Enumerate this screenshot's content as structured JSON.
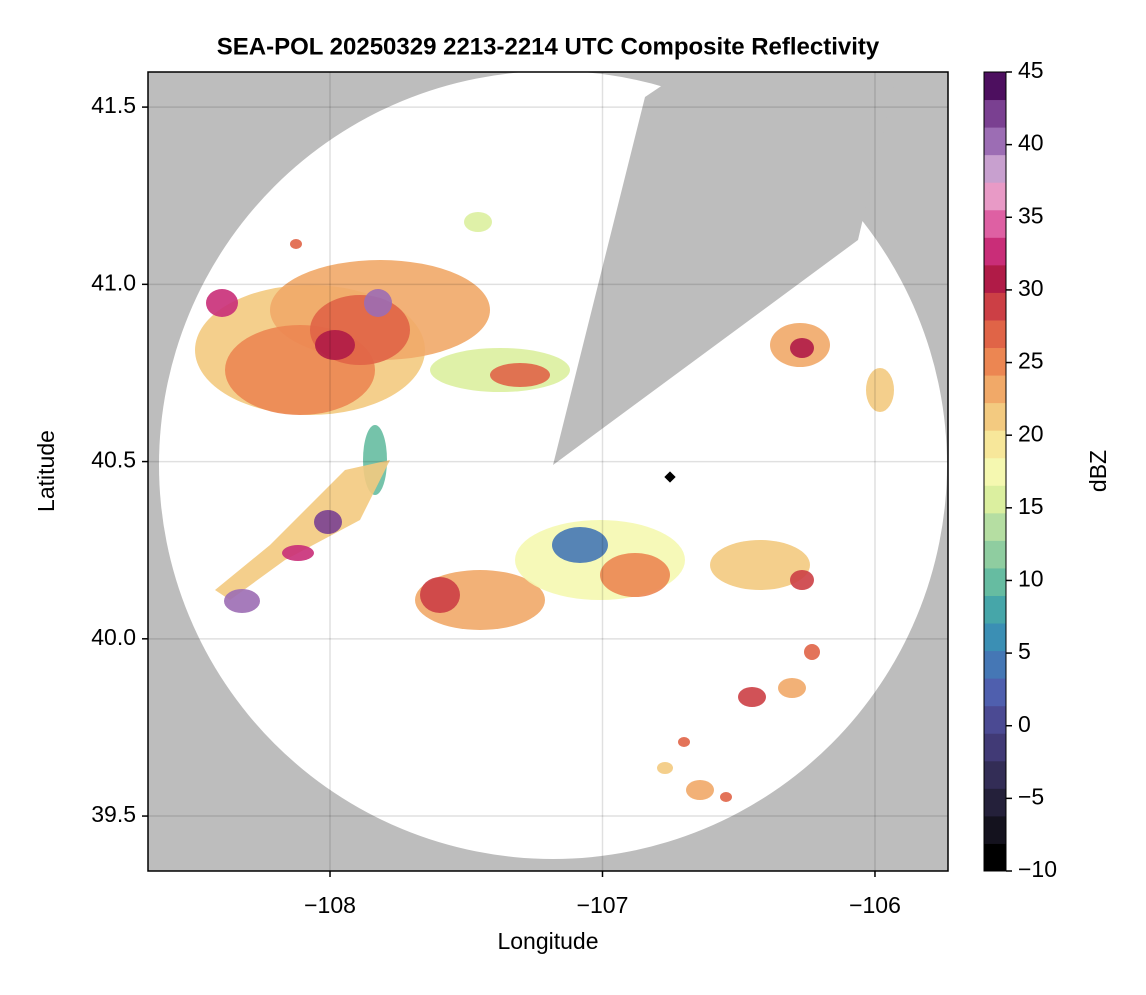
{
  "chart_data": {
    "type": "radar-map",
    "title": "SEA-POL 20250329 2213-2214 UTC Composite Reflectivity",
    "x_label": "Longitude",
    "y_label": "Latitude",
    "xlim": [
      -108.668,
      -105.732
    ],
    "xticks": [
      {
        "value": -108,
        "label": "−108"
      },
      {
        "value": -107,
        "label": "−107"
      },
      {
        "value": -106,
        "label": "−106"
      }
    ],
    "ylim": [
      39.345,
      41.599
    ],
    "yticks": [
      {
        "value": 39.5,
        "label": "39.5"
      },
      {
        "value": 40,
        "label": "40.0"
      },
      {
        "value": 40.5,
        "label": "40.5"
      },
      {
        "value": 41,
        "label": "41.0"
      },
      {
        "value": 41.5,
        "label": "41.5"
      }
    ],
    "grid": true,
    "colorbar": {
      "label": "dBZ",
      "lim": [
        -10,
        45
      ],
      "ticks": [
        {
          "value": -10,
          "label": "−10"
        },
        {
          "value": -5,
          "label": "−5"
        },
        0,
        5,
        10,
        15,
        20,
        25,
        30,
        35,
        40,
        45
      ],
      "colors": [
        "#000000",
        "#14121e",
        "#24203a",
        "#332d56",
        "#413a76",
        "#4b4a93",
        "#4f5fae",
        "#4577b5",
        "#3b8fb4",
        "#46a6a9",
        "#66bca1",
        "#8fcda0",
        "#b5dea2",
        "#dbef9f",
        "#f5f8b0",
        "#f7e79a",
        "#f3ca80",
        "#f1a968",
        "#ec8652",
        "#e06447",
        "#cc3f45",
        "#b01b47",
        "#c92d78",
        "#de60a3",
        "#e89ac6",
        "#c8a0cf",
        "#9c6db4",
        "#7a4091",
        "#4d0f5f"
      ]
    }
  }
}
